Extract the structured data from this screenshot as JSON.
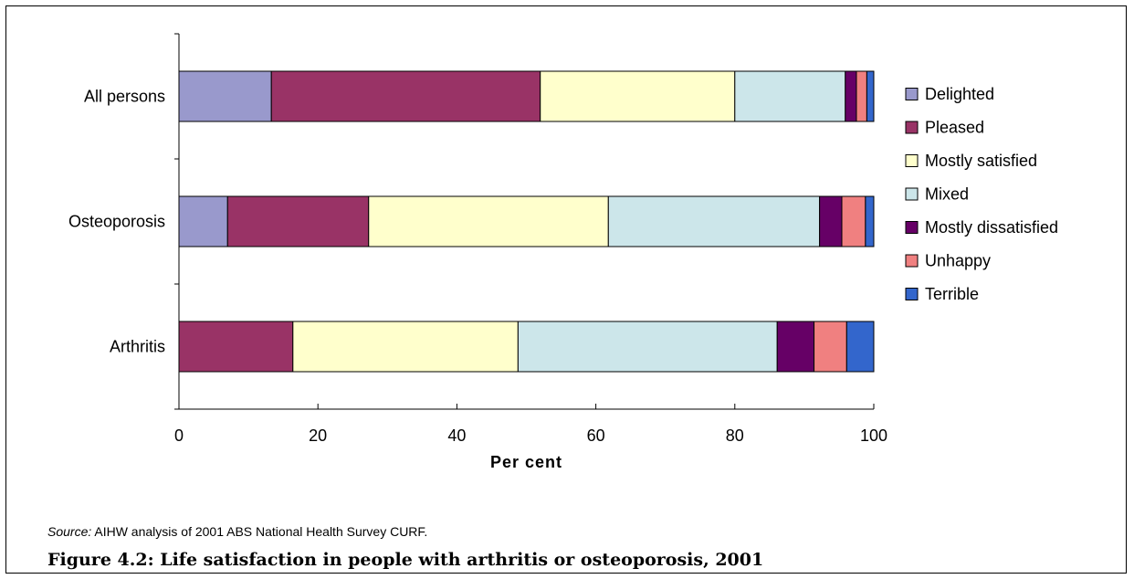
{
  "chart_data": {
    "type": "bar",
    "orientation": "horizontal",
    "stacked": true,
    "categories": [
      "All persons",
      "Osteoporosis",
      "Arthritis"
    ],
    "series": [
      {
        "name": "Delighted",
        "color": "#9999cc",
        "values": [
          13.3,
          7.0,
          0.0
        ]
      },
      {
        "name": "Pleased",
        "color": "#993366",
        "values": [
          38.7,
          20.3,
          16.4
        ]
      },
      {
        "name": "Mostly satisfied",
        "color": "#ffffcc",
        "values": [
          28.0,
          34.5,
          32.4
        ]
      },
      {
        "name": "Mixed",
        "color": "#cce6ea",
        "values": [
          15.9,
          30.4,
          37.3
        ]
      },
      {
        "name": "Mostly dissatisfied",
        "color": "#660066",
        "values": [
          1.6,
          3.2,
          5.3
        ]
      },
      {
        "name": "Unhappy",
        "color": "#f08080",
        "values": [
          1.5,
          3.4,
          4.7
        ]
      },
      {
        "name": "Terrible",
        "color": "#3366cc",
        "values": [
          1.0,
          1.2,
          3.9
        ]
      }
    ],
    "xlabel": "Per cent",
    "xlim": [
      0,
      100
    ],
    "xticks": [
      0,
      20,
      40,
      60,
      80,
      100
    ],
    "grid": false,
    "legend_position": "right"
  },
  "source": {
    "prefix": "Source:",
    "text": " AIHW analysis of 2001 ABS National Health Survey CURF."
  },
  "caption": "Figure 4.2: Life satisfaction in people with arthritis or osteoporosis, 2001"
}
